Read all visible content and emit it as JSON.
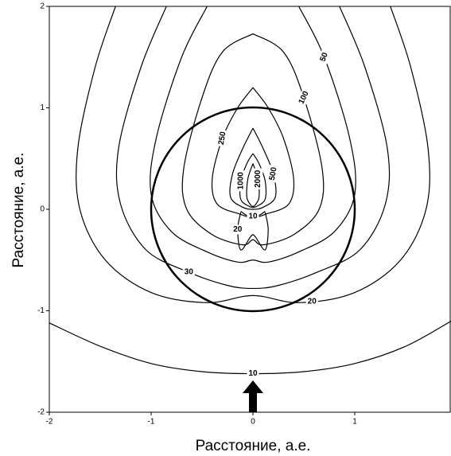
{
  "chart_data": {
    "type": "contour",
    "xlabel": "Расстояние, а.е.",
    "ylabel": "Расстояние, а.е.",
    "xlim": [
      -2,
      1.95
    ],
    "ylim": [
      -2,
      2
    ],
    "xticks": [
      -2,
      -1,
      0,
      1
    ],
    "yticks": [
      -2,
      -1,
      0,
      1,
      2
    ],
    "color": "#000000",
    "circle": {
      "x": 0,
      "y": 0,
      "r": 1
    },
    "contours": [
      {
        "level": 10,
        "x": [
          -2,
          -1.5,
          -1,
          -0.5,
          0,
          0.5,
          1,
          1.5,
          1.95
        ],
        "y": [
          -1.12,
          -1.35,
          -1.52,
          -1.6,
          -1.62,
          -1.6,
          -1.52,
          -1.35,
          -1.1
        ]
      },
      {
        "level": 20,
        "x": [
          -1.35,
          -1.55,
          -1.72,
          -1.7,
          -1.45,
          -1.0,
          -0.45,
          0,
          0.45,
          1.0,
          1.45,
          1.7,
          1.72,
          1.55,
          1.35
        ],
        "y": [
          2,
          1.4,
          0.6,
          0,
          -0.5,
          -0.82,
          -0.92,
          -0.85,
          -0.92,
          -0.82,
          -0.5,
          0,
          0.6,
          1.4,
          2
        ]
      },
      {
        "level": 30,
        "x": [
          -0.85,
          -1.1,
          -1.32,
          -1.3,
          -1.05,
          -0.63,
          -0.25,
          0,
          0.25,
          0.63,
          1.05,
          1.3,
          1.32,
          1.1,
          0.85
        ],
        "y": [
          2,
          1.4,
          0.6,
          0.05,
          -0.4,
          -0.62,
          -0.75,
          -0.78,
          -0.75,
          -0.62,
          -0.4,
          0.05,
          0.6,
          1.4,
          2
        ]
      },
      {
        "level": 50,
        "x": [
          -0.45,
          -0.7,
          -0.95,
          -1.0,
          -0.8,
          -0.45,
          -0.15,
          0,
          0.15,
          0.45,
          0.8,
          1.0,
          0.95,
          0.7,
          0.45
        ],
        "y": [
          2,
          1.5,
          0.7,
          0.15,
          -0.22,
          -0.42,
          -0.52,
          -0.5,
          -0.52,
          -0.42,
          -0.22,
          0.15,
          0.7,
          1.5,
          2
        ]
      },
      {
        "level": 100,
        "x": [
          0,
          -0.3,
          -0.5,
          -0.68,
          -0.65,
          -0.4,
          -0.1,
          0,
          0.1,
          0.4,
          0.65,
          0.68,
          0.5,
          0.3,
          0
        ],
        "y": [
          1.73,
          1.55,
          1.1,
          0.4,
          0.0,
          -0.25,
          -0.35,
          -0.3,
          -0.35,
          -0.25,
          0.0,
          0.4,
          1.1,
          1.55,
          1.73
        ]
      },
      {
        "level": 250,
        "x": [
          0,
          -0.15,
          -0.3,
          -0.4,
          -0.35,
          -0.12,
          0,
          0.12,
          0.35,
          0.4,
          0.3,
          0.15,
          0
        ],
        "y": [
          1.2,
          1.0,
          0.7,
          0.3,
          0.05,
          -0.05,
          -0.08,
          -0.05,
          0.05,
          0.3,
          0.7,
          1.0,
          1.2
        ]
      },
      {
        "level": 500,
        "x": [
          0,
          -0.1,
          -0.2,
          -0.22,
          -0.1,
          0,
          0.1,
          0.22,
          0.2,
          0.1,
          0
        ],
        "y": [
          0.8,
          0.6,
          0.35,
          0.12,
          0.02,
          0.0,
          0.02,
          0.12,
          0.35,
          0.6,
          0.8
        ]
      },
      {
        "level": 1000,
        "x": [
          0,
          -0.06,
          -0.12,
          -0.12,
          -0.04,
          0,
          0.04,
          0.12,
          0.12,
          0.06,
          0
        ],
        "y": [
          0.55,
          0.45,
          0.28,
          0.1,
          0.03,
          0.02,
          0.03,
          0.1,
          0.28,
          0.45,
          0.55
        ]
      },
      {
        "level": 2000,
        "x": [
          0,
          -0.05,
          -0.06,
          -0.02,
          0,
          0.02,
          0.06,
          0.05,
          0
        ],
        "y": [
          0.45,
          0.3,
          0.12,
          0.04,
          0.03,
          0.04,
          0.12,
          0.3,
          0.45
        ]
      },
      {
        "level": 10,
        "x": [
          -0.12,
          -0.06,
          0,
          0.06,
          0.12
        ],
        "y": [
          -0.02,
          -0.06,
          -0.07,
          -0.06,
          -0.02
        ]
      },
      {
        "level": 20,
        "x": [
          -0.12,
          -0.15,
          -0.12,
          -0.03,
          0,
          0.03,
          0.12,
          0.15,
          0.12
        ],
        "y": [
          -0.03,
          -0.2,
          -0.4,
          -0.28,
          -0.25,
          -0.28,
          -0.4,
          -0.2,
          -0.03
        ]
      }
    ]
  }
}
